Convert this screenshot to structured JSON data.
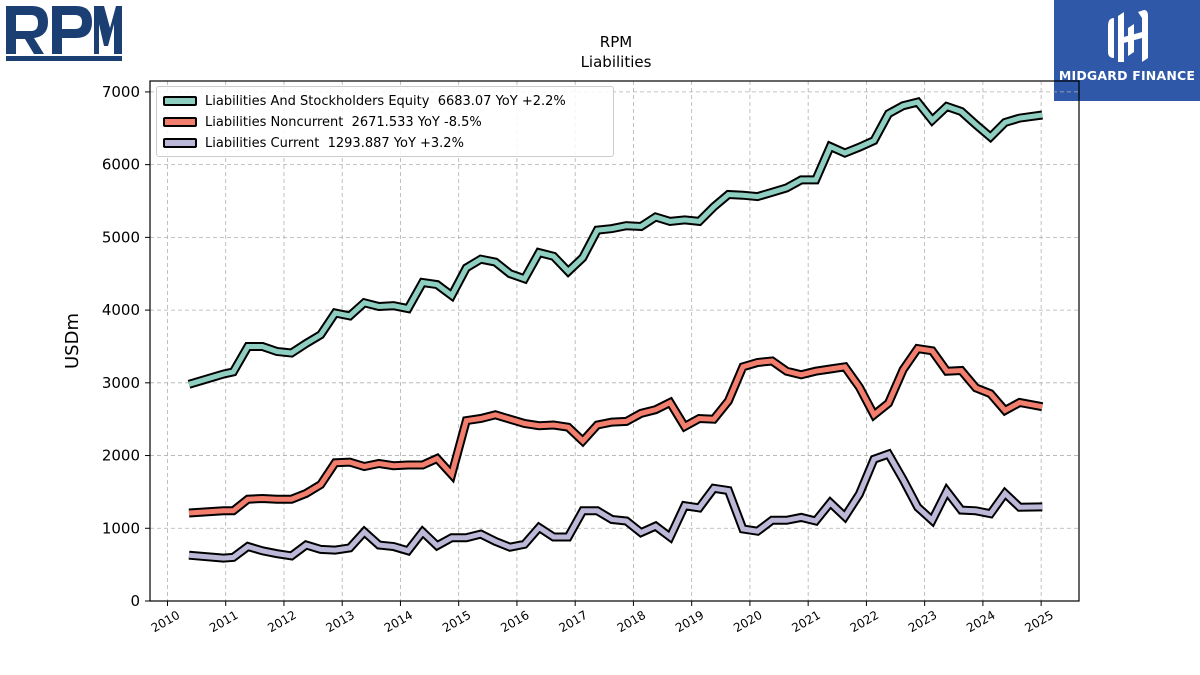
{
  "logos": {
    "company": "RPM",
    "publisher": "MIDGARD FINANCE"
  },
  "colors": {
    "publisher_background": "#2f59a8",
    "company_logo": "#1c3f73"
  },
  "chart_data": {
    "type": "line",
    "title": "RPM",
    "subtitle": "Liabilities",
    "xlabel": "",
    "ylabel": "USDm",
    "xlim": [
      2009.7,
      2025.65
    ],
    "ylim": [
      0,
      7150
    ],
    "x_ticks": [
      "2010",
      "2011",
      "2012",
      "2013",
      "2014",
      "2015",
      "2016",
      "2017",
      "2018",
      "2019",
      "2020",
      "2021",
      "2022",
      "2023",
      "2024",
      "2025"
    ],
    "y_ticks": [
      "0",
      "1000",
      "2000",
      "3000",
      "4000",
      "5000",
      "6000",
      "7000"
    ],
    "grid": true,
    "legend_position": "top-left",
    "series": [
      {
        "name": "Liabilities And Stockholders Equity",
        "legend_label": "Liabilities And Stockholders Equity  6683.07 YoY +2.2%",
        "color": "#8ecfc2",
        "points": [
          [
            2010.37,
            2980
          ],
          [
            2010.96,
            3120
          ],
          [
            2011.13,
            3150
          ],
          [
            2011.38,
            3500
          ],
          [
            2011.63,
            3500
          ],
          [
            2011.88,
            3430
          ],
          [
            2012.13,
            3410
          ],
          [
            2012.38,
            3540
          ],
          [
            2012.63,
            3660
          ],
          [
            2012.88,
            3960
          ],
          [
            2013.13,
            3920
          ],
          [
            2013.38,
            4100
          ],
          [
            2013.63,
            4050
          ],
          [
            2013.88,
            4060
          ],
          [
            2014.13,
            4020
          ],
          [
            2014.38,
            4380
          ],
          [
            2014.63,
            4350
          ],
          [
            2014.88,
            4200
          ],
          [
            2015.13,
            4580
          ],
          [
            2015.38,
            4700
          ],
          [
            2015.63,
            4660
          ],
          [
            2015.88,
            4500
          ],
          [
            2016.13,
            4430
          ],
          [
            2016.38,
            4790
          ],
          [
            2016.63,
            4740
          ],
          [
            2016.88,
            4530
          ],
          [
            2017.13,
            4720
          ],
          [
            2017.38,
            5100
          ],
          [
            2017.63,
            5120
          ],
          [
            2017.88,
            5160
          ],
          [
            2018.13,
            5150
          ],
          [
            2018.38,
            5280
          ],
          [
            2018.63,
            5220
          ],
          [
            2018.88,
            5240
          ],
          [
            2019.13,
            5220
          ],
          [
            2019.38,
            5420
          ],
          [
            2019.63,
            5590
          ],
          [
            2019.88,
            5580
          ],
          [
            2020.13,
            5560
          ],
          [
            2020.38,
            5620
          ],
          [
            2020.63,
            5680
          ],
          [
            2020.88,
            5790
          ],
          [
            2021.13,
            5790
          ],
          [
            2021.38,
            6250
          ],
          [
            2021.63,
            6160
          ],
          [
            2021.88,
            6240
          ],
          [
            2022.13,
            6330
          ],
          [
            2022.38,
            6700
          ],
          [
            2022.63,
            6810
          ],
          [
            2022.88,
            6860
          ],
          [
            2023.13,
            6610
          ],
          [
            2023.38,
            6800
          ],
          [
            2023.63,
            6730
          ],
          [
            2023.88,
            6550
          ],
          [
            2024.13,
            6380
          ],
          [
            2024.38,
            6580
          ],
          [
            2024.63,
            6640
          ],
          [
            2025.02,
            6683.07
          ]
        ]
      },
      {
        "name": "Liabilities Noncurrent",
        "legend_label": "Liabilities Noncurrent  2671.533 YoY -8.5%",
        "color": "#f27e6e",
        "points": [
          [
            2010.37,
            1210
          ],
          [
            2010.96,
            1240
          ],
          [
            2011.13,
            1240
          ],
          [
            2011.38,
            1400
          ],
          [
            2011.63,
            1410
          ],
          [
            2011.88,
            1400
          ],
          [
            2012.13,
            1400
          ],
          [
            2012.38,
            1480
          ],
          [
            2012.63,
            1600
          ],
          [
            2012.88,
            1900
          ],
          [
            2013.13,
            1910
          ],
          [
            2013.38,
            1850
          ],
          [
            2013.63,
            1890
          ],
          [
            2013.88,
            1860
          ],
          [
            2014.13,
            1870
          ],
          [
            2014.38,
            1870
          ],
          [
            2014.63,
            1960
          ],
          [
            2014.88,
            1740
          ],
          [
            2015.13,
            2480
          ],
          [
            2015.38,
            2510
          ],
          [
            2015.63,
            2560
          ],
          [
            2015.88,
            2500
          ],
          [
            2016.13,
            2440
          ],
          [
            2016.38,
            2410
          ],
          [
            2016.63,
            2420
          ],
          [
            2016.88,
            2390
          ],
          [
            2017.13,
            2200
          ],
          [
            2017.38,
            2420
          ],
          [
            2017.63,
            2460
          ],
          [
            2017.88,
            2470
          ],
          [
            2018.13,
            2580
          ],
          [
            2018.38,
            2630
          ],
          [
            2018.63,
            2730
          ],
          [
            2018.88,
            2400
          ],
          [
            2019.13,
            2510
          ],
          [
            2019.38,
            2500
          ],
          [
            2019.63,
            2750
          ],
          [
            2019.88,
            3220
          ],
          [
            2020.13,
            3280
          ],
          [
            2020.38,
            3300
          ],
          [
            2020.63,
            3160
          ],
          [
            2020.88,
            3110
          ],
          [
            2021.13,
            3160
          ],
          [
            2021.38,
            3190
          ],
          [
            2021.63,
            3220
          ],
          [
            2021.88,
            2940
          ],
          [
            2022.13,
            2560
          ],
          [
            2022.38,
            2720
          ],
          [
            2022.63,
            3180
          ],
          [
            2022.88,
            3470
          ],
          [
            2023.13,
            3440
          ],
          [
            2023.38,
            3160
          ],
          [
            2023.63,
            3170
          ],
          [
            2023.88,
            2930
          ],
          [
            2024.13,
            2850
          ],
          [
            2024.38,
            2620
          ],
          [
            2024.63,
            2730
          ],
          [
            2025.02,
            2671.533
          ]
        ]
      },
      {
        "name": "Liabilities Current",
        "legend_label": "Liabilities Current  1293.887 YoY +3.2%",
        "color": "#bcb8d8",
        "points": [
          [
            2010.37,
            630
          ],
          [
            2010.96,
            590
          ],
          [
            2011.13,
            600
          ],
          [
            2011.38,
            750
          ],
          [
            2011.63,
            690
          ],
          [
            2011.88,
            650
          ],
          [
            2012.13,
            620
          ],
          [
            2012.38,
            770
          ],
          [
            2012.63,
            710
          ],
          [
            2012.88,
            700
          ],
          [
            2013.13,
            730
          ],
          [
            2013.38,
            950
          ],
          [
            2013.63,
            770
          ],
          [
            2013.88,
            750
          ],
          [
            2014.13,
            690
          ],
          [
            2014.38,
            950
          ],
          [
            2014.63,
            760
          ],
          [
            2014.88,
            870
          ],
          [
            2015.13,
            870
          ],
          [
            2015.38,
            920
          ],
          [
            2015.63,
            820
          ],
          [
            2015.88,
            740
          ],
          [
            2016.13,
            780
          ],
          [
            2016.38,
            1010
          ],
          [
            2016.63,
            880
          ],
          [
            2016.88,
            880
          ],
          [
            2017.13,
            1240
          ],
          [
            2017.38,
            1240
          ],
          [
            2017.63,
            1120
          ],
          [
            2017.88,
            1100
          ],
          [
            2018.13,
            940
          ],
          [
            2018.38,
            1030
          ],
          [
            2018.63,
            880
          ],
          [
            2018.88,
            1310
          ],
          [
            2019.13,
            1280
          ],
          [
            2019.38,
            1550
          ],
          [
            2019.63,
            1520
          ],
          [
            2019.88,
            990
          ],
          [
            2020.13,
            960
          ],
          [
            2020.38,
            1110
          ],
          [
            2020.63,
            1110
          ],
          [
            2020.88,
            1150
          ],
          [
            2021.13,
            1100
          ],
          [
            2021.38,
            1350
          ],
          [
            2021.63,
            1160
          ],
          [
            2021.88,
            1470
          ],
          [
            2022.13,
            1950
          ],
          [
            2022.38,
            2020
          ],
          [
            2022.63,
            1670
          ],
          [
            2022.88,
            1290
          ],
          [
            2023.13,
            1110
          ],
          [
            2023.38,
            1510
          ],
          [
            2023.63,
            1250
          ],
          [
            2023.88,
            1240
          ],
          [
            2024.13,
            1200
          ],
          [
            2024.38,
            1480
          ],
          [
            2024.63,
            1290
          ],
          [
            2025.02,
            1293.887
          ]
        ]
      }
    ]
  }
}
